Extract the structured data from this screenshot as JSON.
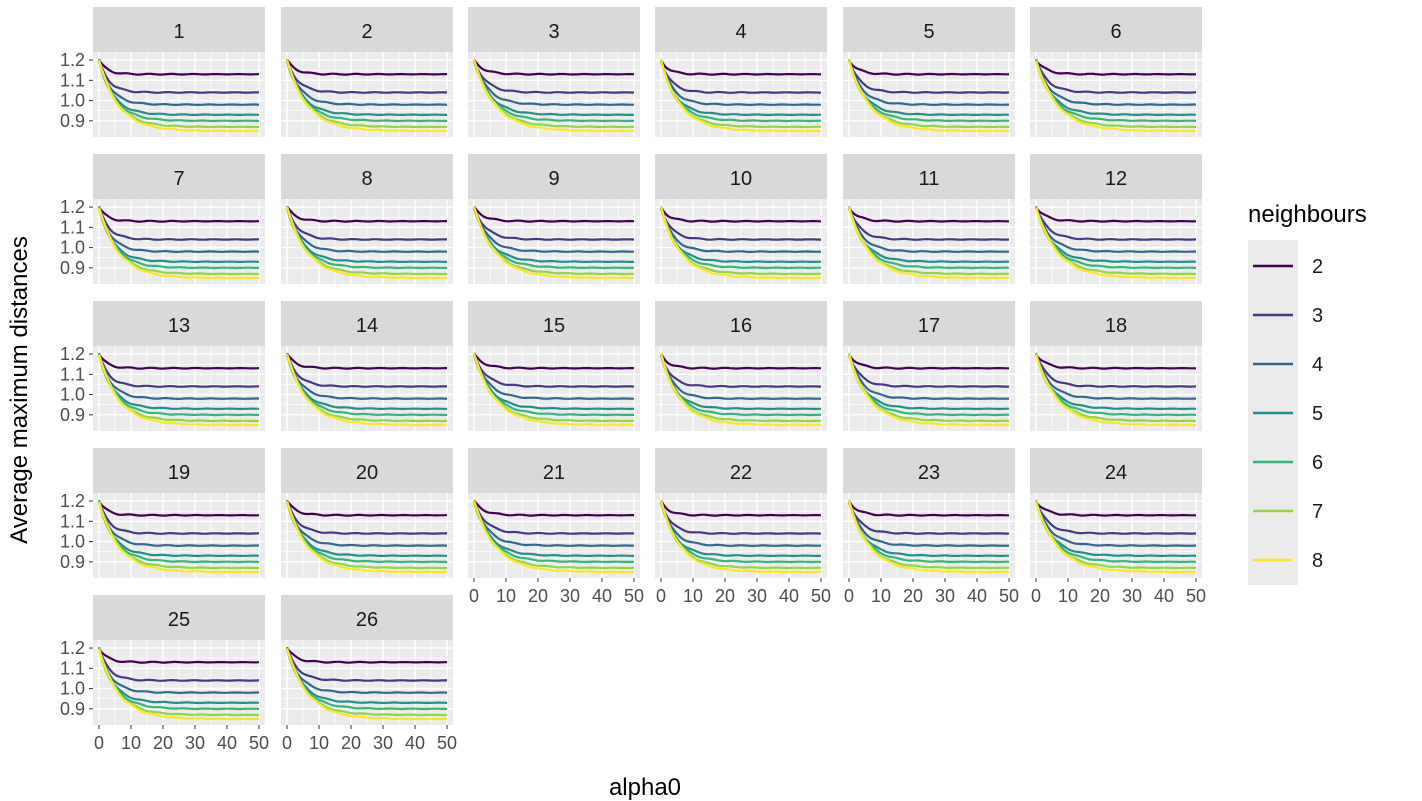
{
  "chart_data": {
    "type": "line",
    "xlabel": "alpha0",
    "ylabel": "Average maximum distances",
    "xlim": [
      0,
      50
    ],
    "ylim": [
      0.84,
      1.22
    ],
    "x_ticks": [
      "0",
      "10",
      "20",
      "30",
      "40",
      "50"
    ],
    "y_ticks": [
      "0.9",
      "1.0",
      "1.1",
      "1.2"
    ],
    "grid": true,
    "panels": [
      "1",
      "2",
      "3",
      "4",
      "5",
      "6",
      "7",
      "8",
      "9",
      "10",
      "11",
      "12",
      "13",
      "14",
      "15",
      "16",
      "17",
      "18",
      "19",
      "20",
      "21",
      "22",
      "23",
      "24",
      "25",
      "26"
    ],
    "legend": {
      "title": "neighbours",
      "placement": "right",
      "entries": [
        {
          "label": "2",
          "color": "#440154"
        },
        {
          "label": "3",
          "color": "#443A83"
        },
        {
          "label": "4",
          "color": "#31688E"
        },
        {
          "label": "5",
          "color": "#21908C"
        },
        {
          "label": "6",
          "color": "#35B779"
        },
        {
          "label": "7",
          "color": "#8FD744"
        },
        {
          "label": "8",
          "color": "#FDE725"
        }
      ]
    },
    "approx_final_values": {
      "description_x": [
        0,
        2,
        5,
        10,
        20,
        30,
        40,
        50
      ],
      "series": [
        {
          "name": "2",
          "start": 1.2,
          "end": 1.13
        },
        {
          "name": "3",
          "start": 1.2,
          "end": 1.04
        },
        {
          "name": "4",
          "start": 1.2,
          "end": 0.98
        },
        {
          "name": "5",
          "start": 1.2,
          "end": 0.93
        },
        {
          "name": "6",
          "start": 1.2,
          "end": 0.9
        },
        {
          "name": "7",
          "start": 1.2,
          "end": 0.87
        },
        {
          "name": "8",
          "start": 1.2,
          "end": 0.85
        }
      ]
    }
  }
}
